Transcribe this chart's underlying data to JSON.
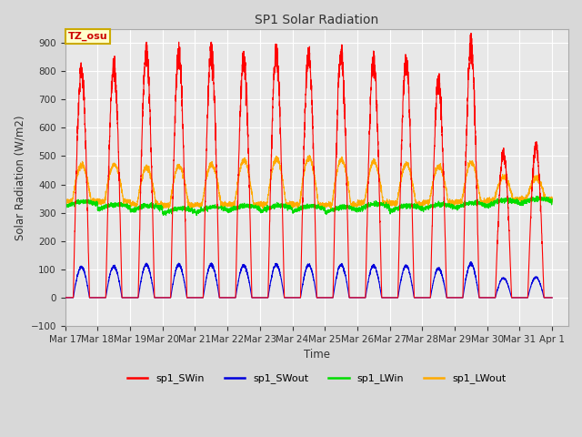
{
  "title": "SP1 Solar Radiation",
  "ylabel": "Solar Radiation (W/m2)",
  "xlabel": "Time",
  "ylim": [
    -100,
    950
  ],
  "xlim": [
    0,
    15.5
  ],
  "fig_bg_color": "#d8d8d8",
  "plot_bg_color": "#e8e8e8",
  "annotation_text": "TZ_osu",
  "annotation_bg": "#ffffcc",
  "annotation_border": "#ccaa00",
  "annotation_text_color": "#cc0000",
  "xtick_labels": [
    "Mar 17",
    "Mar 18",
    "Mar 19",
    "Mar 20",
    "Mar 21",
    "Mar 22",
    "Mar 23",
    "Mar 24",
    "Mar 25",
    "Mar 26",
    "Mar 27",
    "Mar 28",
    "Mar 29",
    "Mar 30",
    "Mar 31",
    "Apr 1"
  ],
  "legend": [
    {
      "label": "sp1_SWin",
      "color": "#ff0000"
    },
    {
      "label": "sp1_SWout",
      "color": "#0000dd"
    },
    {
      "label": "sp1_LWin",
      "color": "#00dd00"
    },
    {
      "label": "sp1_LWout",
      "color": "#ffaa00"
    }
  ],
  "line_width": 0.8,
  "grid_color": "#ffffff",
  "grid_linewidth": 0.8,
  "yticks": [
    -100,
    0,
    100,
    200,
    300,
    400,
    500,
    600,
    700,
    800,
    900
  ]
}
